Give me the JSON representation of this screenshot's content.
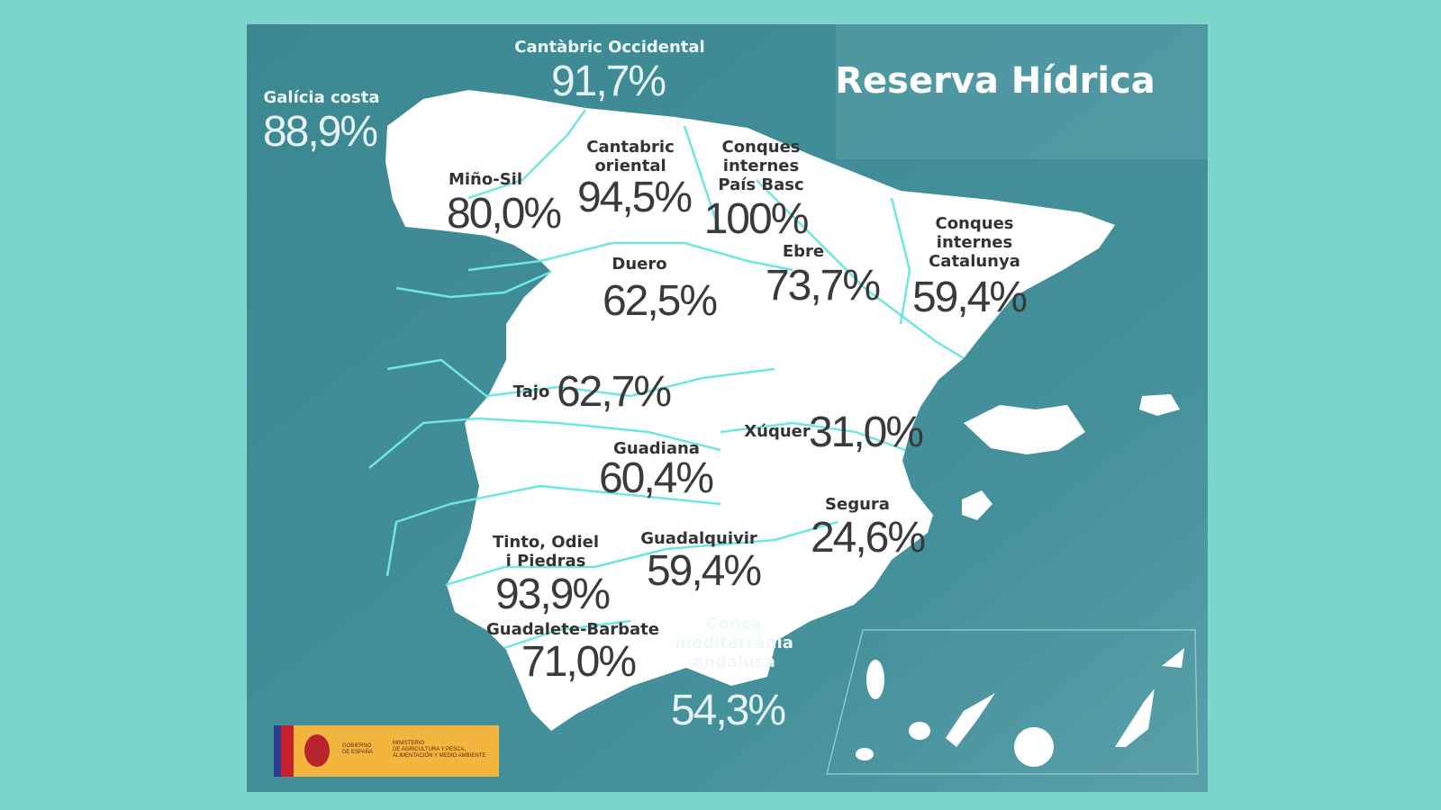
{
  "title": "Reserva Hídrica",
  "regions": [
    {
      "name": [
        "Galícia costa"
      ],
      "value": "88,9%"
    },
    {
      "name": [
        "Cantàbric Occidental"
      ],
      "value": "91,7%"
    },
    {
      "name": [
        "Miño-Sil"
      ],
      "value": "80,0%"
    },
    {
      "name": [
        "Cantabric",
        "oriental"
      ],
      "value": "94,5%"
    },
    {
      "name": [
        "Conques",
        "internes",
        "País Basc"
      ],
      "value": "100%"
    },
    {
      "name": [
        "Ebre"
      ],
      "value": "73,7%"
    },
    {
      "name": [
        "Conques",
        "internes",
        "Catalunya"
      ],
      "value": "59,4%"
    },
    {
      "name": [
        "Duero"
      ],
      "value": "62,5%"
    },
    {
      "name": [
        "Tajo"
      ],
      "value": "62,7%"
    },
    {
      "name": [
        "Xúquer"
      ],
      "value": "31,0%"
    },
    {
      "name": [
        "Guadiana"
      ],
      "value": "60,4%"
    },
    {
      "name": [
        "Segura"
      ],
      "value": "24,6%"
    },
    {
      "name": [
        "Tinto, Odiel",
        "i Piedras"
      ],
      "value": "93,9%"
    },
    {
      "name": [
        "Guadalquivir"
      ],
      "value": "59,4%"
    },
    {
      "name": [
        "Guadalete-Barbate"
      ],
      "value": "71,0%"
    },
    {
      "name": [
        "Conca",
        "mediterrània",
        "andalusa"
      ],
      "value": "54,3%"
    }
  ],
  "logo": {
    "government": [
      "GOBIERNO",
      "DE ESPAÑA"
    ],
    "ministry": [
      "MINISTERIO",
      "DE AGRICULTURA Y PESCA,",
      "ALIMENTACIÓN Y MEDIO AMBIENTE"
    ]
  }
}
